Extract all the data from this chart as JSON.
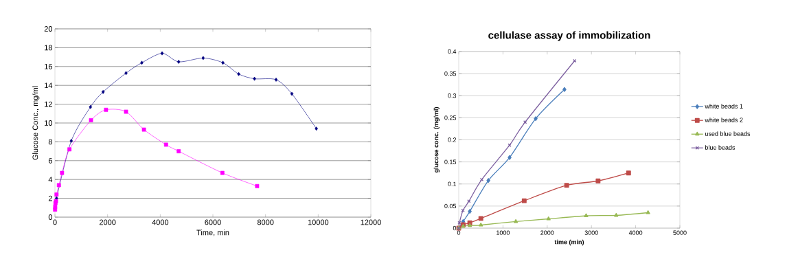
{
  "chart_data": [
    {
      "type": "line",
      "xlabel": "Time, min",
      "ylabel": "Glucose Conc., mg/ml",
      "xlim": [
        0,
        12000
      ],
      "ylim": [
        0,
        20
      ],
      "xticks": [
        0,
        2000,
        4000,
        6000,
        8000,
        10000,
        12000
      ],
      "yticks": [
        0,
        2,
        4,
        6,
        8,
        10,
        12,
        14,
        16,
        18,
        20
      ],
      "grid": "y",
      "legend": false,
      "series": [
        {
          "color": "#000080",
          "marker": "diamond",
          "x": [
            60,
            620,
            1350,
            1830,
            2700,
            3300,
            4070,
            4700,
            5630,
            6380,
            6980,
            7580,
            8400,
            9000,
            9930
          ],
          "values": [
            2.0,
            8.1,
            11.7,
            13.3,
            15.3,
            16.4,
            17.4,
            16.5,
            16.9,
            16.4,
            15.2,
            14.7,
            14.6,
            13.1,
            9.4
          ]
        },
        {
          "color": "#ff00ff",
          "marker": "square",
          "x": [
            5,
            10,
            20,
            40,
            60,
            150,
            270,
            550,
            1370,
            1940,
            2700,
            3380,
            4220,
            4700,
            6360,
            7680
          ],
          "values": [
            0.8,
            1.1,
            1.5,
            1.7,
            2.4,
            3.4,
            4.7,
            7.2,
            10.3,
            11.4,
            11.2,
            9.3,
            7.7,
            7.0,
            4.7,
            3.3
          ]
        }
      ]
    },
    {
      "type": "line",
      "title": "cellulase assay of immobilization",
      "xlabel": "time (min)",
      "ylabel": "glucose conc. (mg/ml)",
      "xlim": [
        0,
        5000
      ],
      "ylim": [
        0,
        0.4
      ],
      "xticks": [
        0,
        1000,
        2000,
        3000,
        4000,
        5000
      ],
      "yticks": [
        0,
        0.05,
        0.1,
        0.15,
        0.2,
        0.25,
        0.3,
        0.35,
        0.4
      ],
      "grid": "y",
      "legend": "right",
      "series": [
        {
          "name": "white beads 1",
          "color": "#4a7ebb",
          "marker": "diamond",
          "x": [
            0,
            100,
            250,
            670,
            1150,
            1740,
            2390
          ],
          "values": [
            0,
            0.015,
            0.038,
            0.108,
            0.16,
            0.248,
            0.314
          ]
        },
        {
          "name": "white beads 2",
          "color": "#be4b48",
          "marker": "square",
          "x": [
            0,
            100,
            250,
            500,
            1480,
            2440,
            3150,
            3840
          ],
          "values": [
            0,
            0.008,
            0.012,
            0.022,
            0.062,
            0.097,
            0.107,
            0.125
          ]
        },
        {
          "name": "used blue beads",
          "color": "#98b954",
          "marker": "triangle",
          "x": [
            0,
            100,
            250,
            500,
            1290,
            2030,
            2880,
            3560,
            4280
          ],
          "values": [
            0,
            0.004,
            0.006,
            0.007,
            0.015,
            0.021,
            0.028,
            0.029,
            0.035
          ]
        },
        {
          "name": "blue beads",
          "color": "#7d60a0",
          "marker": "cross",
          "x": [
            0,
            15,
            95,
            230,
            520,
            1150,
            1500,
            2620
          ],
          "values": [
            0,
            0.012,
            0.04,
            0.061,
            0.11,
            0.188,
            0.24,
            0.379
          ]
        }
      ]
    }
  ]
}
